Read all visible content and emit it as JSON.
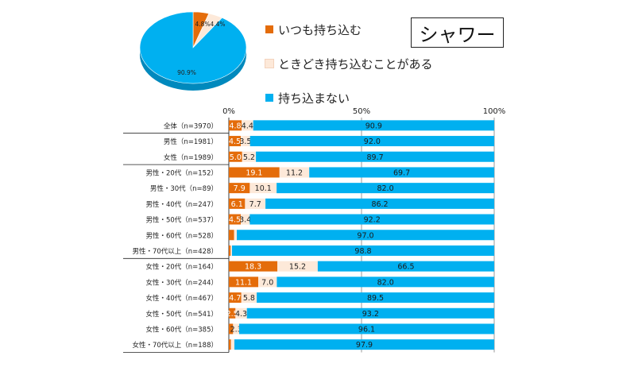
{
  "title": "シャワー",
  "colors": {
    "always": "#e46c0a",
    "sometimes": "#fde9d9",
    "never": "#00b0f0",
    "grid": "#7f7f7f"
  },
  "legend": [
    {
      "label": "いつも持ち込む",
      "color": "#e46c0a"
    },
    {
      "label": "ときどき持ち込むことがある",
      "color": "#fde9d9"
    },
    {
      "label": "持ち込まない",
      "color": "#00b0f0"
    }
  ],
  "chart_data": [
    {
      "type": "pie",
      "slices": [
        {
          "name": "いつも持ち込む",
          "value": 4.8,
          "label": "4.8%"
        },
        {
          "name": "ときどき持ち込むことがある",
          "value": 4.4,
          "label": "4.4%"
        },
        {
          "name": "持ち込まない",
          "value": 90.9,
          "label": "90.9%"
        }
      ]
    },
    {
      "type": "bar",
      "orientation": "horizontal",
      "stacked": "percent",
      "xlim": [
        0,
        100
      ],
      "ticks": [
        "0%",
        "50%",
        "100%"
      ],
      "categories": [
        "全体（n=3970）",
        "男性（n=1981）",
        "女性（n=1989）",
        "男性・20代（n=152）",
        "男性・30代（n=89）",
        "男性・40代（n=247）",
        "男性・50代（n=537）",
        "男性・60代（n=528）",
        "男性・70代以上（n=428）",
        "女性・20代（n=164）",
        "女性・30代（n=244）",
        "女性・40代（n=467）",
        "女性・50代（n=541）",
        "女性・60代（n=385）",
        "女性・70代以上（n=188）"
      ],
      "series": [
        {
          "name": "いつも持ち込む",
          "values": [
            4.8,
            4.5,
            5.0,
            19.1,
            7.9,
            6.1,
            4.5,
            2.0,
            0.7,
            18.3,
            11.1,
            4.7,
            2.5,
            1.6,
            0.8
          ],
          "labels": [
            "4.8",
            "4.5",
            "5.0",
            "19.1",
            "7.9",
            "6.1",
            "4.5",
            "",
            "",
            "18.3",
            "11.1",
            "4.7",
            "2.5",
            "",
            ""
          ]
        },
        {
          "name": "ときどき持ち込むことがある",
          "values": [
            4.4,
            3.5,
            5.2,
            11.2,
            10.1,
            7.7,
            3.4,
            1.0,
            0.5,
            15.2,
            7.0,
            5.8,
            4.3,
            2.3,
            1.3
          ],
          "labels": [
            "4.4",
            "3.5",
            "5.2",
            "11.2",
            "10.1",
            "7.7",
            "3.4",
            "",
            "",
            "15.2",
            "7.0",
            "5.8",
            "4.3",
            "2.3",
            ""
          ]
        },
        {
          "name": "持ち込まない",
          "values": [
            90.9,
            92.0,
            89.7,
            69.7,
            82.0,
            86.2,
            92.2,
            97.0,
            98.8,
            66.5,
            82.0,
            89.5,
            93.2,
            96.1,
            97.9
          ],
          "labels": [
            "90.9",
            "92.0",
            "89.7",
            "69.7",
            "82.0",
            "86.2",
            "92.2",
            "97.0",
            "98.8",
            "66.5",
            "82.0",
            "89.5",
            "93.2",
            "96.1",
            "97.9"
          ]
        }
      ],
      "separators_after": [
        0,
        2,
        8
      ]
    }
  ]
}
